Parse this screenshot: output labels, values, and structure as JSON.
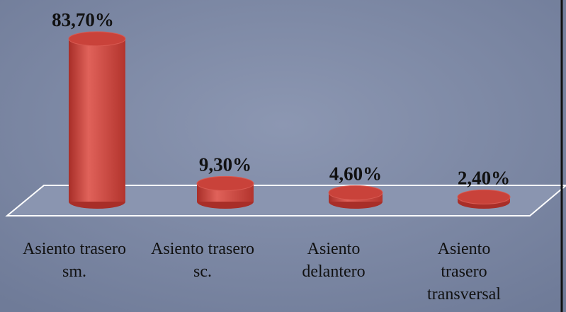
{
  "chart_data": {
    "type": "bar3d",
    "categories": [
      "Asiento trasero sm.",
      "Asiento trasero sc.",
      "Asiento delantero",
      "Asiento trasero transversal"
    ],
    "values": [
      83.7,
      9.3,
      4.6,
      2.4
    ],
    "value_labels": [
      "83,70%",
      "9,30%",
      "4,60%",
      "2,40%"
    ],
    "color": "#c9423a"
  }
}
